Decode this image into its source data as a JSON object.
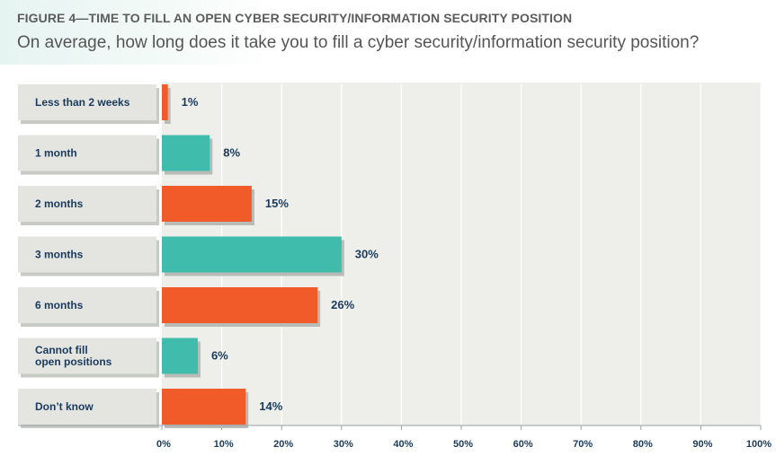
{
  "figure": {
    "title": "FIGURE 4—TIME TO FILL AN OPEN CYBER SECURITY/INFORMATION SECURITY POSITION",
    "subtitle": "On average, how long does it take you to fill a cyber security/information security position?"
  },
  "colors": {
    "orange": "#f15a29",
    "teal": "#3fbcac",
    "label_text": "#1a3a5c",
    "plot_bg": "#eeeeea",
    "label_bg": "#e4e5e1"
  },
  "chart_data": {
    "type": "bar",
    "orientation": "horizontal",
    "categories": [
      "Less than 2 weeks",
      "1 month",
      "2 months",
      "3 months",
      "6 months",
      "Cannot fill open positions",
      "Don’t know"
    ],
    "category_lines": [
      [
        "Less than 2 weeks"
      ],
      [
        "1 month"
      ],
      [
        "2 months"
      ],
      [
        "3 months"
      ],
      [
        "6 months"
      ],
      [
        "Cannot fill",
        "open positions"
      ],
      [
        "Don’t know"
      ]
    ],
    "values": [
      1,
      8,
      15,
      30,
      26,
      6,
      14
    ],
    "value_labels": [
      "1%",
      "8%",
      "15%",
      "30%",
      "26%",
      "6%",
      "14%"
    ],
    "bar_colors": [
      "orange",
      "teal",
      "orange",
      "teal",
      "orange",
      "teal",
      "orange"
    ],
    "xlim": [
      0,
      100
    ],
    "xticks": [
      "0%",
      "10%",
      "20%",
      "30%",
      "40%",
      "50%",
      "60%",
      "70%",
      "80%",
      "90%",
      "100%"
    ],
    "grid": true,
    "legend": "none"
  }
}
